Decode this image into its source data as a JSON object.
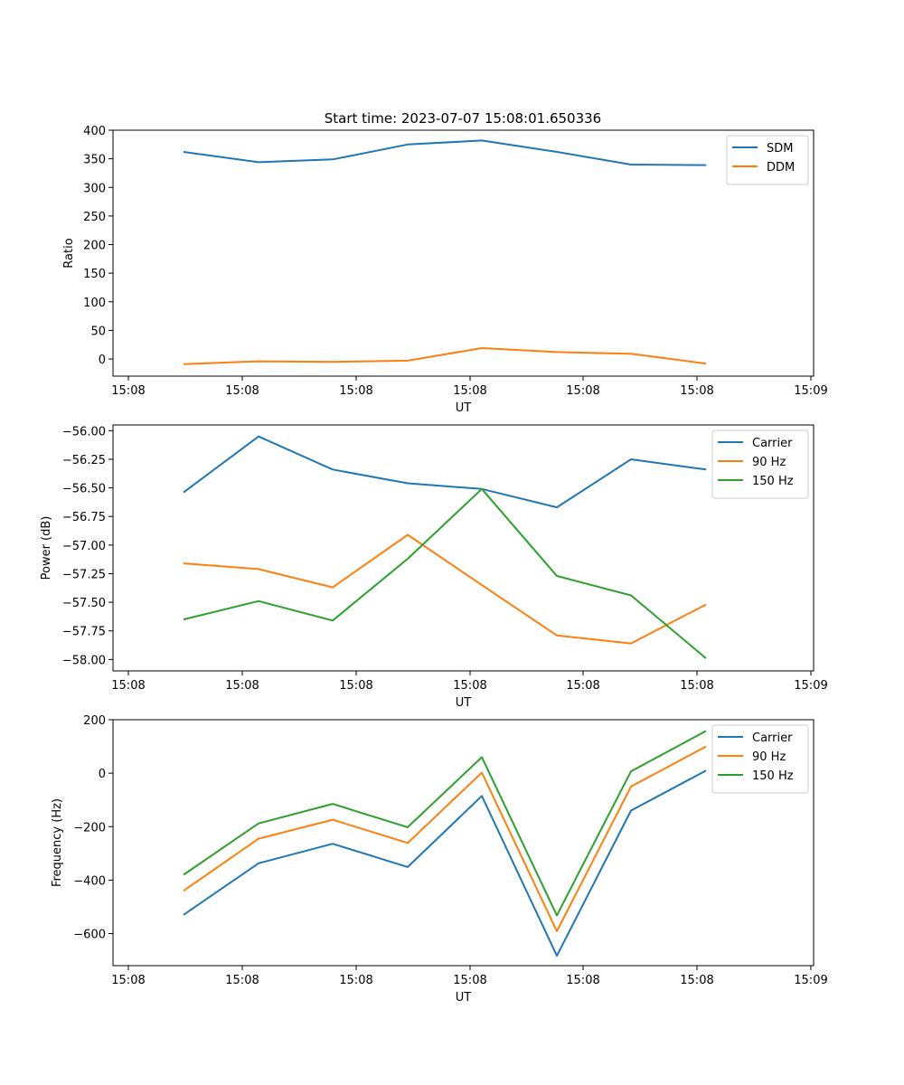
{
  "figure": {
    "title": "Start time: 2023-07-07 15:08:01.650336"
  },
  "colors": {
    "blue": "#1f77b4",
    "orange": "#ff7f0e",
    "green": "#2ca02c"
  },
  "chart_data": [
    {
      "type": "line",
      "title": "Start time: 2023-07-07 15:08:01.650336",
      "xlabel": "UT",
      "ylabel": "Ratio",
      "x_tick_labels": [
        "15:08",
        "15:08",
        "15:08",
        "15:08",
        "15:08",
        "15:08",
        "15:09"
      ],
      "ylim": [
        -30,
        400
      ],
      "y_ticks": [
        0,
        50,
        100,
        150,
        200,
        250,
        300,
        350,
        400
      ],
      "y_tick_labels": [
        "0",
        "50",
        "100",
        "150",
        "200",
        "250",
        "300",
        "350",
        "400"
      ],
      "legend": "top-right",
      "series": [
        {
          "name": "SDM",
          "color": "#1f77b4",
          "values": [
            362,
            344,
            349,
            375,
            382,
            362,
            340,
            339
          ]
        },
        {
          "name": "DDM",
          "color": "#ff7f0e",
          "values": [
            -9,
            -4,
            -5,
            -3,
            19,
            12,
            9,
            -8
          ]
        }
      ]
    },
    {
      "type": "line",
      "xlabel": "UT",
      "ylabel": "Power (dB)",
      "x_tick_labels": [
        "15:08",
        "15:08",
        "15:08",
        "15:08",
        "15:08",
        "15:08",
        "15:09"
      ],
      "ylim": [
        -58.1,
        -55.95
      ],
      "y_ticks": [
        -58.0,
        -57.75,
        -57.5,
        -57.25,
        -57.0,
        -56.75,
        -56.5,
        -56.25,
        -56.0
      ],
      "y_tick_labels": [
        "−58.00",
        "−57.75",
        "−57.50",
        "−57.25",
        "−57.00",
        "−56.75",
        "−56.50",
        "−56.25",
        "−56.00"
      ],
      "legend": "top-right",
      "series": [
        {
          "name": "Carrier",
          "color": "#1f77b4",
          "values": [
            -56.54,
            -56.05,
            -56.34,
            -56.46,
            -56.51,
            -56.67,
            -56.25,
            -56.34
          ]
        },
        {
          "name": "90 Hz",
          "color": "#ff7f0e",
          "values": [
            -57.16,
            -57.21,
            -57.37,
            -56.91,
            -57.35,
            -57.79,
            -57.86,
            -57.52
          ]
        },
        {
          "name": "150 Hz",
          "color": "#2ca02c",
          "values": [
            -57.65,
            -57.49,
            -57.66,
            -57.12,
            -56.51,
            -57.27,
            -57.44,
            -57.99
          ]
        }
      ]
    },
    {
      "type": "line",
      "xlabel": "UT",
      "ylabel": "Frequency (Hz)",
      "x_tick_labels": [
        "15:08",
        "15:08",
        "15:08",
        "15:08",
        "15:08",
        "15:08",
        "15:09"
      ],
      "ylim": [
        -720,
        200
      ],
      "y_ticks": [
        -600,
        -400,
        -200,
        0,
        200
      ],
      "y_tick_labels": [
        "−600",
        "−400",
        "−200",
        "0",
        "200"
      ],
      "legend": "top-right",
      "series": [
        {
          "name": "Carrier",
          "color": "#1f77b4",
          "values": [
            -530,
            -337,
            -264,
            -351,
            -85,
            -683,
            -140,
            10
          ]
        },
        {
          "name": "90 Hz",
          "color": "#ff7f0e",
          "values": [
            -440,
            -245,
            -174,
            -261,
            2,
            -591,
            -50,
            100
          ]
        },
        {
          "name": "150 Hz",
          "color": "#2ca02c",
          "values": [
            -380,
            -188,
            -115,
            -202,
            60,
            -532,
            7,
            158
          ]
        }
      ]
    }
  ]
}
